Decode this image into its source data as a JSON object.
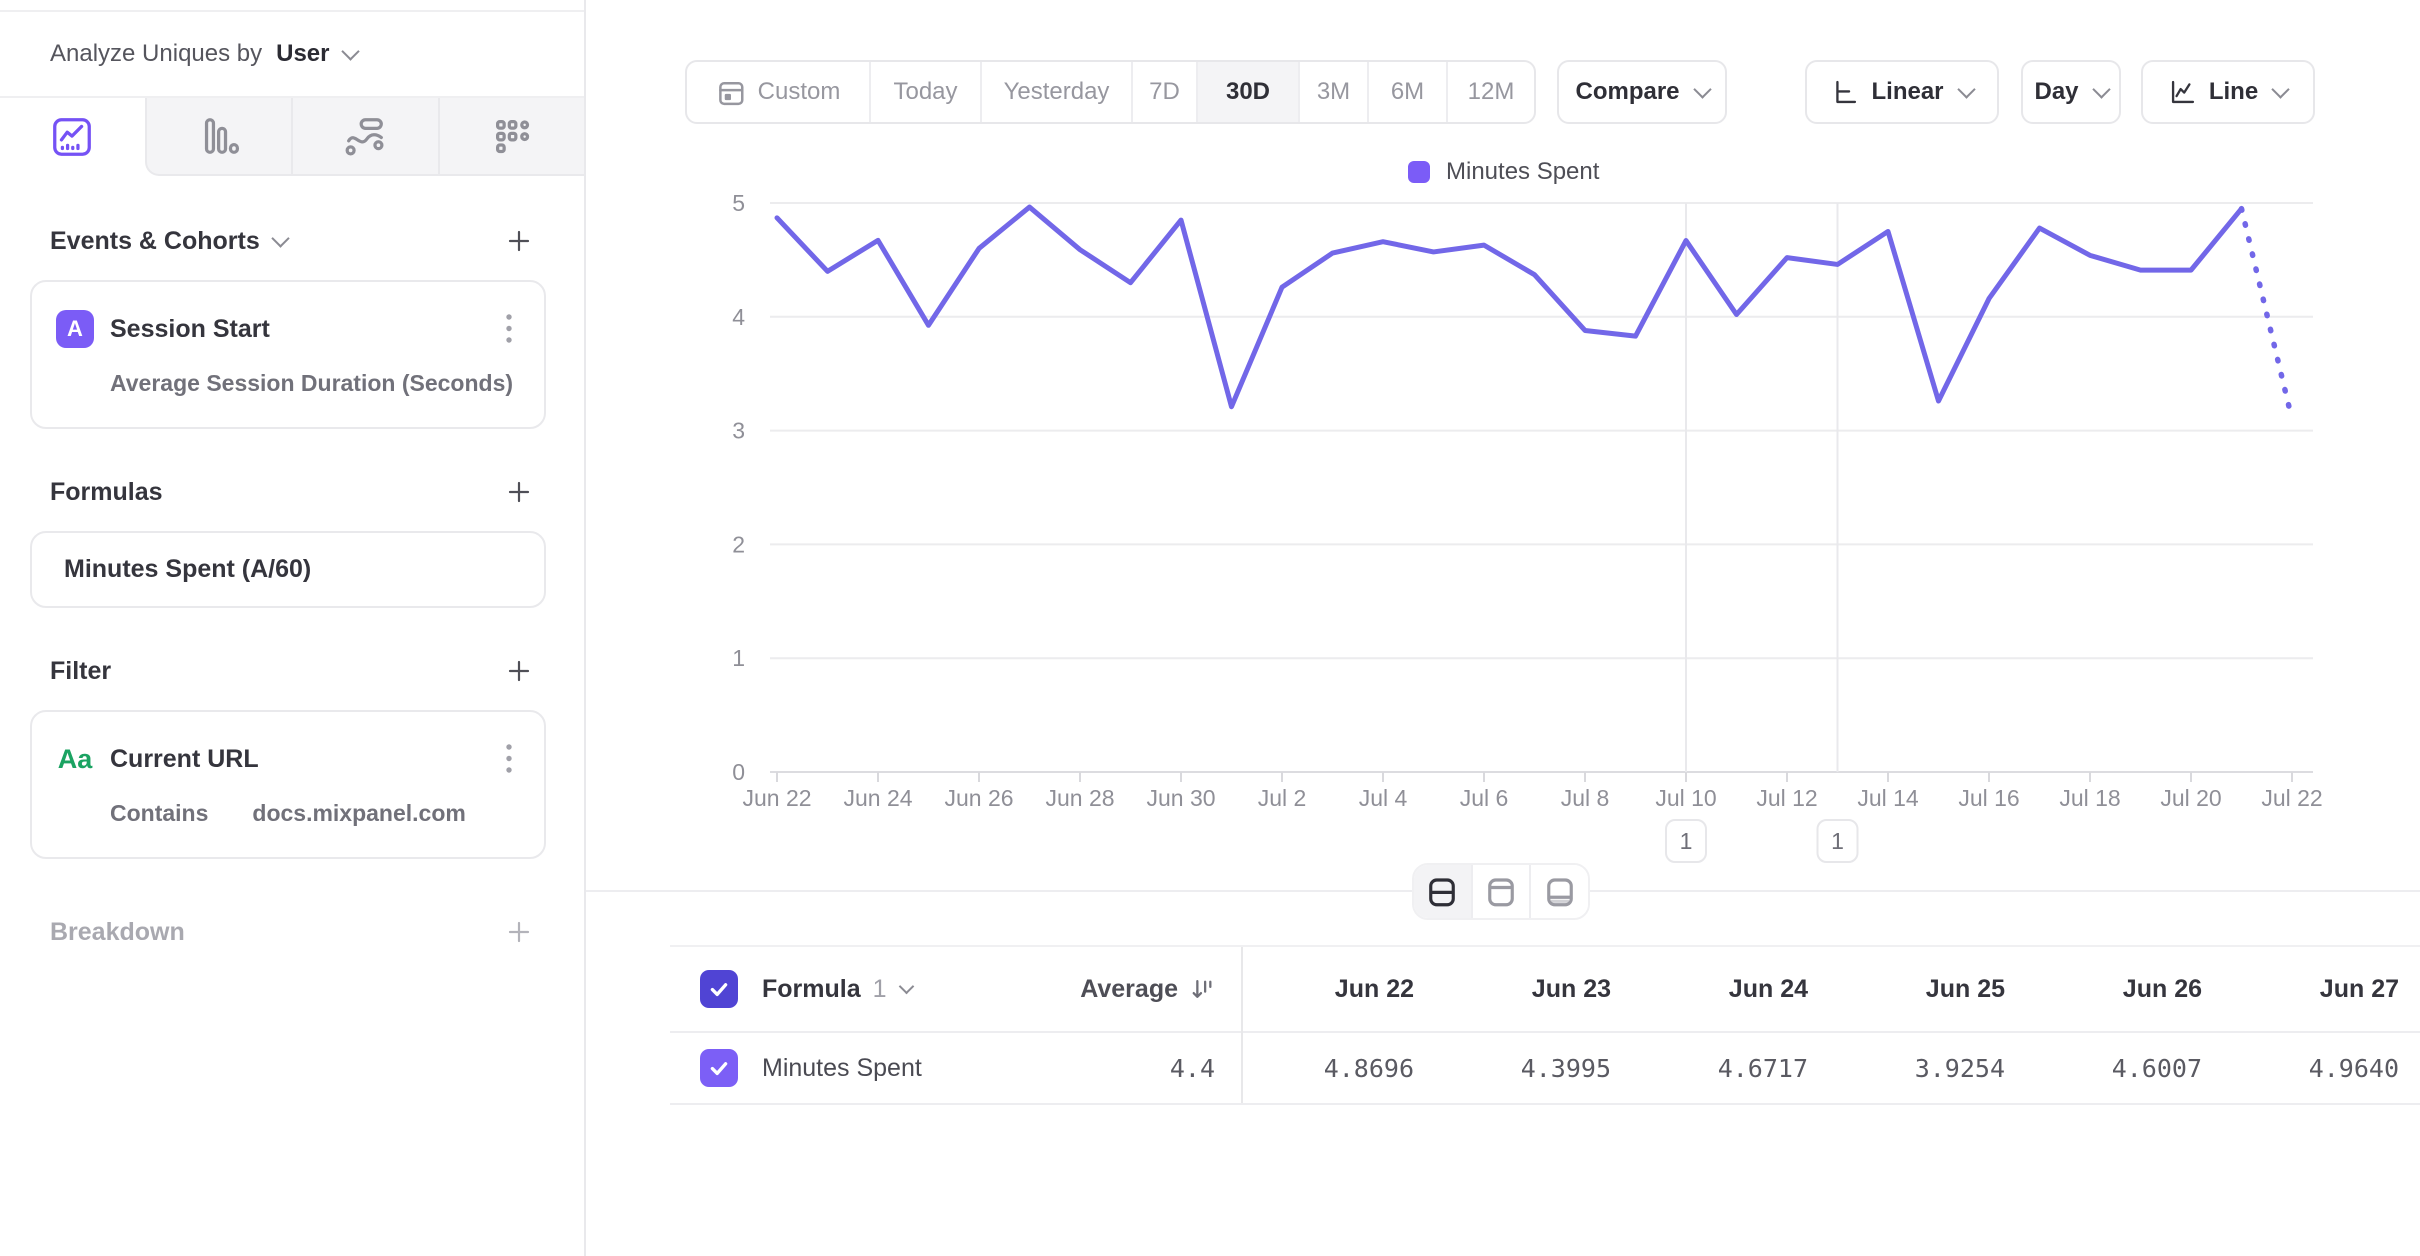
{
  "sidebar": {
    "analyze_label": "Analyze Uniques by",
    "analyze_value": "User",
    "events_section": {
      "title": "Events & Cohorts",
      "event": {
        "badge": "A",
        "title": "Session Start",
        "metric": "Average Session Duration (Seconds)"
      }
    },
    "formulas_section": {
      "title": "Formulas",
      "formula": {
        "title": "Minutes Spent (A/60)"
      }
    },
    "filter_section": {
      "title": "Filter",
      "filter": {
        "badge": "Aa",
        "property": "Current URL",
        "operator": "Contains",
        "value": "docs.mixpanel.com"
      }
    },
    "breakdown_section": {
      "title": "Breakdown"
    }
  },
  "toolbar": {
    "date_ranges": [
      "Custom",
      "Today",
      "Yesterday",
      "7D",
      "30D",
      "3M",
      "6M",
      "12M"
    ],
    "active_range": "30D",
    "compare_label": "Compare",
    "scale_label": "Linear",
    "granularity_label": "Day",
    "chart_type_label": "Line"
  },
  "chart_data": {
    "type": "line",
    "legend": [
      "Minutes Spent"
    ],
    "legend_position": "top",
    "ylim": [
      0,
      5
    ],
    "yticks": [
      0,
      1,
      2,
      3,
      4,
      5
    ],
    "grid": "horizontal",
    "x": [
      "Jun 22",
      "Jun 23",
      "Jun 24",
      "Jun 25",
      "Jun 26",
      "Jun 27",
      "Jun 28",
      "Jun 29",
      "Jun 30",
      "Jul 1",
      "Jul 2",
      "Jul 3",
      "Jul 4",
      "Jul 5",
      "Jul 6",
      "Jul 7",
      "Jul 8",
      "Jul 9",
      "Jul 10",
      "Jul 11",
      "Jul 12",
      "Jul 13",
      "Jul 14",
      "Jul 15",
      "Jul 16",
      "Jul 17",
      "Jul 18",
      "Jul 19",
      "Jul 20",
      "Jul 21",
      "Jul 22"
    ],
    "x_tick_labels": [
      "Jun 22",
      "Jun 24",
      "Jun 26",
      "Jun 28",
      "Jun 30",
      "Jul 2",
      "Jul 4",
      "Jul 6",
      "Jul 8",
      "Jul 10",
      "Jul 12",
      "Jul 14",
      "Jul 16",
      "Jul 18",
      "Jul 20",
      "Jul 22"
    ],
    "series": [
      {
        "name": "Minutes Spent",
        "color": "#7267e8",
        "values": [
          4.8696,
          4.3995,
          4.6717,
          3.9254,
          4.6007,
          4.964,
          4.59,
          4.3,
          4.85,
          3.21,
          4.26,
          4.56,
          4.66,
          4.57,
          4.63,
          4.37,
          3.88,
          3.83,
          4.67,
          4.02,
          4.52,
          4.46,
          4.75,
          3.26,
          4.16,
          4.78,
          4.54,
          4.41,
          4.41,
          4.95,
          3.1
        ],
        "projected_last_segment": true
      }
    ],
    "annotations": [
      {
        "x": "Jul 10",
        "count": "1"
      },
      {
        "x": "Jul 13",
        "count": "1"
      }
    ]
  },
  "table": {
    "group": {
      "label": "Formula",
      "number": "1"
    },
    "average_header": "Average",
    "date_columns": [
      "Jun 22",
      "Jun 23",
      "Jun 24",
      "Jun 25",
      "Jun 26",
      "Jun 27"
    ],
    "rows": [
      {
        "checked": true,
        "name": "Minutes Spent",
        "average": "4.4",
        "values": [
          "4.8696",
          "4.3995",
          "4.6717",
          "3.9254",
          "4.6007",
          "4.9640"
        ]
      }
    ]
  },
  "colors": {
    "accent_purple": "#7b5cf7",
    "indigo_checkbox": "#5044d4",
    "line_series": "#7267e8",
    "green_badge": "#1ba362"
  }
}
